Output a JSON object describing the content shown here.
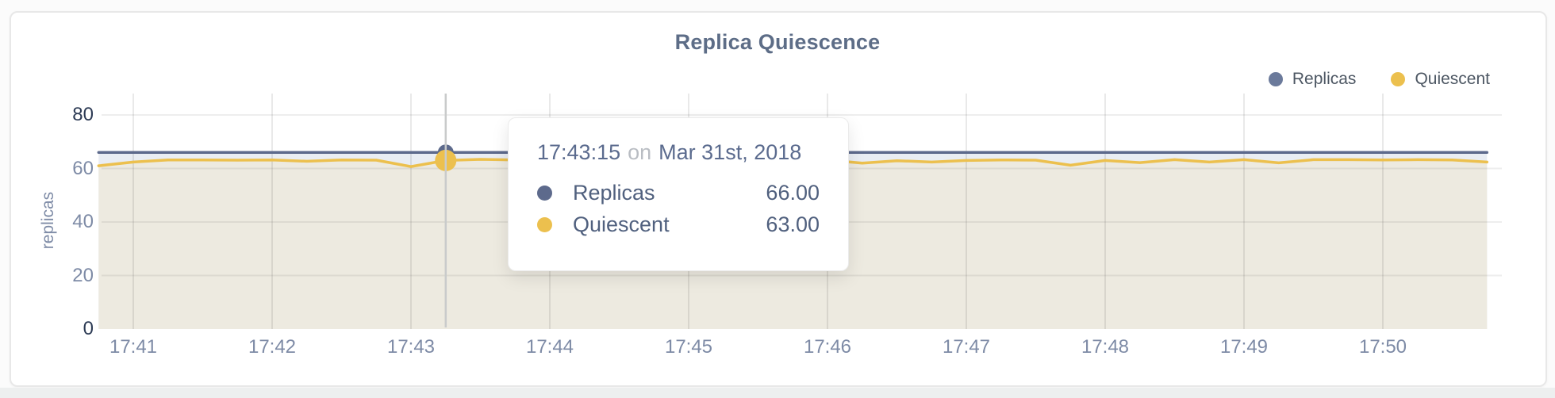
{
  "card": {
    "title": "Replica Quiescence"
  },
  "legend": [
    {
      "label": "Replicas",
      "color": "#6b7a9b"
    },
    {
      "label": "Quiescent",
      "color": "#ecc04e"
    }
  ],
  "tooltip": {
    "time": "17:43:15",
    "connector": "on",
    "date": "Mar 31st, 2018",
    "rows": [
      {
        "label": "Replicas",
        "value": "66.00",
        "color": "#5d6a8c"
      },
      {
        "label": "Quiescent",
        "value": "63.00",
        "color": "#ecc04e"
      }
    ]
  },
  "chart_data": {
    "type": "line",
    "title": "Replica Quiescence",
    "xlabel": "",
    "ylabel": "replicas",
    "ylim": [
      0,
      80
    ],
    "y_ticks": [
      0,
      20,
      40,
      60,
      80
    ],
    "y_ticks_emphasized": [
      0,
      80
    ],
    "x_tick_labels": [
      "17:41",
      "17:42",
      "17:43",
      "17:44",
      "17:45",
      "17:46",
      "17:47",
      "17:48",
      "17:49",
      "17:50"
    ],
    "x_start": "17:40:45",
    "x_step_seconds": 15,
    "grid": true,
    "legend_position": "top-right",
    "series": [
      {
        "name": "Replicas",
        "color": "#5d6a8c",
        "fill": "#e9edf3",
        "values": [
          66,
          66,
          66,
          66,
          66,
          66,
          66,
          66,
          66,
          66,
          66,
          66,
          66,
          66,
          66,
          66,
          66,
          66,
          66,
          66,
          66,
          66,
          66,
          66,
          66,
          66,
          66,
          66,
          66,
          66,
          66,
          66,
          66,
          66,
          66,
          66,
          66,
          66,
          66,
          66,
          66
        ]
      },
      {
        "name": "Quiescent",
        "color": "#ecc04e",
        "fill": "#edeae0",
        "values": [
          61.0,
          62.4,
          63.2,
          63.2,
          63.1,
          63.2,
          62.7,
          63.2,
          63.1,
          60.7,
          63.0,
          63.4,
          63.2,
          63.3,
          63.2,
          63.2,
          63.3,
          63.2,
          63.3,
          63.2,
          63.3,
          63.2,
          62.0,
          62.9,
          62.4,
          63.0,
          63.2,
          63.1,
          61.2,
          63.0,
          62.2,
          63.3,
          62.4,
          63.3,
          62.1,
          63.3,
          63.3,
          63.2,
          63.3,
          63.2,
          62.4
        ]
      }
    ],
    "hover": {
      "index": 10,
      "time": "17:43:15",
      "date": "Mar 31st, 2018",
      "values": {
        "Replicas": 66.0,
        "Quiescent": 63.0
      },
      "crosshair_color": "#c9cbcb"
    }
  }
}
